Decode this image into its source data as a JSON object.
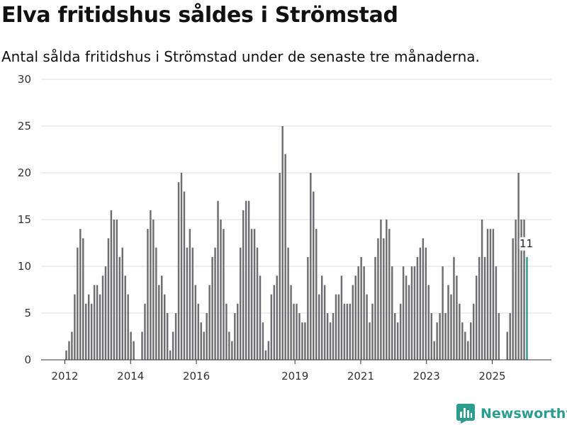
{
  "header": {
    "title": "Elva fritidshus såldes i Strömstad",
    "subtitle": "Antal sålda fritidshus i Strömstad under de senaste tre månaderna."
  },
  "brand": {
    "name": "Newsworthy",
    "logo_icon": "bar-chart-logo-icon"
  },
  "colors": {
    "bar": "#6e6d72",
    "highlight": "#2a9d8f",
    "grid": "#dddddd",
    "axis": "#333333"
  },
  "chart_data": {
    "type": "bar",
    "title": "Elva fritidshus såldes i Strömstad",
    "subtitle": "Antal sålda fritidshus i Strömstad under de senaste tre månaderna.",
    "xlabel": "",
    "ylabel": "",
    "ylim": [
      0,
      30
    ],
    "yticks": [
      0,
      5,
      10,
      15,
      20,
      25,
      30
    ],
    "grid": true,
    "x_start": 2012,
    "x_end": 2026.1,
    "xtick_labels": [
      "2012",
      "2014",
      "2016",
      "2019",
      "2021",
      "2023",
      "2025"
    ],
    "xtick_positions": [
      2012,
      2014,
      2016,
      2019,
      2021,
      2023,
      2025
    ],
    "series": [
      {
        "name": "Antal sålda fritidshus",
        "values": [
          1,
          2,
          3,
          7,
          12,
          14,
          13,
          6,
          7,
          6,
          8,
          8,
          7,
          9,
          10,
          13,
          16,
          15,
          15,
          11,
          12,
          9,
          7,
          3,
          2,
          null,
          null,
          3,
          6,
          14,
          16,
          15,
          12,
          8,
          9,
          7,
          5,
          1,
          3,
          5,
          19,
          20,
          18,
          12,
          14,
          12,
          8,
          6,
          4,
          3,
          5,
          8,
          11,
          12,
          17,
          15,
          14,
          6,
          3,
          2,
          5,
          6,
          12,
          16,
          17,
          17,
          14,
          14,
          12,
          9,
          4,
          1,
          2,
          7,
          8,
          9,
          20,
          25,
          22,
          12,
          8,
          6,
          6,
          5,
          4,
          4,
          11,
          20,
          18,
          14,
          7,
          9,
          8,
          5,
          4,
          5,
          7,
          7,
          9,
          6,
          6,
          6,
          8,
          9,
          10,
          11,
          10,
          7,
          4,
          6,
          11,
          13,
          15,
          13,
          15,
          14,
          10,
          5,
          4,
          6,
          10,
          9,
          8,
          10,
          10,
          11,
          12,
          13,
          12,
          8,
          5,
          2,
          4,
          5,
          10,
          5,
          8,
          7,
          11,
          9,
          6,
          4,
          3,
          2,
          4,
          6,
          9,
          11,
          15,
          11,
          14,
          14,
          14,
          10,
          5,
          null,
          null,
          3,
          5,
          13,
          15,
          20,
          15,
          15,
          11
        ],
        "highlight_last": true,
        "last_label": "11"
      }
    ]
  }
}
